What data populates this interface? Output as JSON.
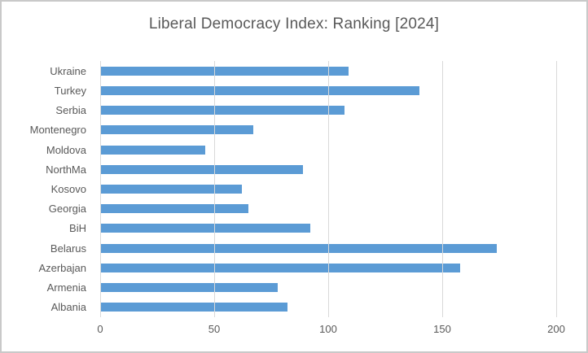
{
  "window": {
    "background": "#ffffff",
    "border_color": "#c9c9c9"
  },
  "chart_data": {
    "type": "bar",
    "orientation": "horizontal",
    "title": "Liberal Democracy Index: Ranking [2024]",
    "categories": [
      "Ukraine",
      "Turkey",
      "Serbia",
      "Montenegro",
      "Moldova",
      "NorthMa",
      "Kosovo",
      "Georgia",
      "BiH",
      "Belarus",
      "Azerbajan",
      "Armenia",
      "Albania"
    ],
    "values": [
      109,
      140,
      107,
      67,
      46,
      89,
      62,
      65,
      92,
      174,
      158,
      78,
      82
    ],
    "xlabel": "",
    "ylabel": "",
    "xlim": [
      0,
      200
    ],
    "xticks": [
      0,
      50,
      100,
      150,
      200
    ],
    "grid": true,
    "legend": false,
    "bar_color": "#5b9bd5",
    "gridline_color": "#d9d9d9",
    "text_color": "#595959"
  }
}
